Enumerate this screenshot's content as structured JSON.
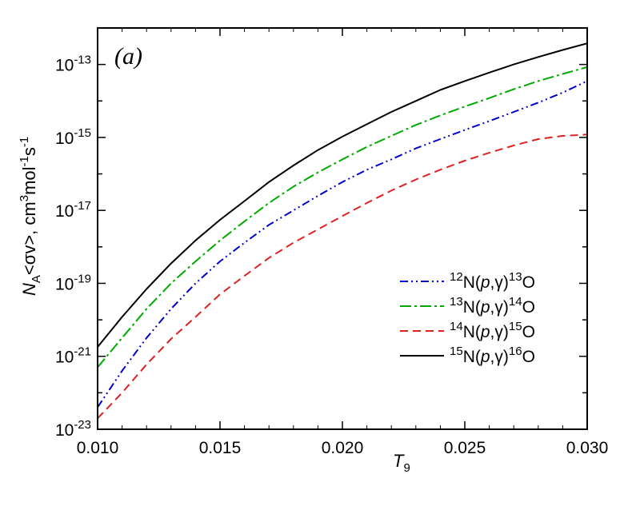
{
  "chart_data": {
    "type": "line",
    "panel_label": "(a)",
    "yscale": "log",
    "xlim": [
      0.01,
      0.03
    ],
    "ylim": [
      1e-23,
      1e-12
    ],
    "x_ticks": [
      "0.010",
      "0.015",
      "0.020",
      "0.025",
      "0.030"
    ],
    "y_ticks": [
      {
        "mantissa": "10",
        "exp": "-13",
        "value": 1e-13
      },
      {
        "mantissa": "10",
        "exp": "-15",
        "value": 1e-15
      },
      {
        "mantissa": "10",
        "exp": "-17",
        "value": 1e-17
      },
      {
        "mantissa": "10",
        "exp": "-19",
        "value": 1e-19
      },
      {
        "mantissa": "10",
        "exp": "-21",
        "value": 1e-21
      },
      {
        "mantissa": "10",
        "exp": "-23",
        "value": 1e-23
      }
    ],
    "xlabel": {
      "main": "T",
      "sub": "9"
    },
    "ylabel": {
      "n": "N",
      "a": "A",
      "rest": "<σv>, cm",
      "e1": "3",
      "mol": "mol",
      "e2": "-1",
      "s": "s",
      "e3": "-1"
    },
    "legend_position": "lower-right",
    "x": [
      0.01,
      0.011,
      0.012,
      0.013,
      0.014,
      0.015,
      0.016,
      0.017,
      0.018,
      0.019,
      0.02,
      0.021,
      0.022,
      0.023,
      0.024,
      0.025,
      0.026,
      0.027,
      0.028,
      0.029,
      0.03
    ],
    "series": [
      {
        "name": "12N(p,γ)13O",
        "label": {
          "pre": "12",
          "el1": "N(",
          "p": "p",
          "comma": ",",
          "g": "γ",
          "close": ")",
          "post": "13",
          "el2": "O"
        },
        "color": "#0000cc",
        "dash": "10,4,2,4,2,4",
        "values": [
          4e-23,
          4e-22,
          3.2e-21,
          2e-20,
          1e-19,
          4e-19,
          1.3e-18,
          4e-18,
          1e-17,
          2.5e-17,
          6e-17,
          1.3e-16,
          2.5e-16,
          5e-16,
          9e-16,
          1.6e-15,
          2.8e-15,
          5e-15,
          9e-15,
          1.7e-14,
          3.5e-14
        ]
      },
      {
        "name": "13N(p,γ)14O",
        "label": {
          "pre": "13",
          "el1": "N(",
          "p": "p",
          "comma": ",",
          "g": "γ",
          "close": ")",
          "post": "14",
          "el2": "O"
        },
        "color": "#00aa00",
        "dash": "14,4,3,4",
        "values": [
          5e-22,
          3.2e-21,
          2e-20,
          1e-19,
          4e-19,
          1.5e-18,
          5e-18,
          1.6e-17,
          4.5e-17,
          1.1e-16,
          2.5e-16,
          5.5e-16,
          1.1e-15,
          2.2e-15,
          4e-15,
          7e-15,
          1.2e-14,
          2.1e-14,
          3.5e-14,
          5.5e-14,
          8.5e-14
        ]
      },
      {
        "name": "14N(p,γ)15O",
        "label": {
          "pre": "14",
          "el1": "N(",
          "p": "p",
          "comma": ",",
          "g": "γ",
          "close": ")",
          "post": "15",
          "el2": "O"
        },
        "color": "#dd2222",
        "dash": "10,6",
        "values": [
          2e-23,
          1e-22,
          6e-22,
          3e-21,
          1.2e-20,
          5e-20,
          1.6e-19,
          5e-19,
          1.3e-18,
          3e-18,
          7e-18,
          1.6e-17,
          3.5e-17,
          7e-17,
          1.3e-16,
          2.3e-16,
          3.8e-16,
          6e-16,
          9e-16,
          1.1e-15,
          1.2e-15
        ]
      },
      {
        "name": "15N(p,γ)16O",
        "label": {
          "pre": "15",
          "el1": "N(",
          "p": "p",
          "comma": ",",
          "g": "γ",
          "close": ")",
          "post": "16",
          "el2": "O"
        },
        "color": "#000000",
        "dash": "",
        "values": [
          1.8e-21,
          1.2e-20,
          7e-20,
          3.5e-19,
          1.5e-18,
          5.5e-18,
          1.8e-17,
          6e-17,
          1.7e-16,
          4.5e-16,
          1.05e-15,
          2.3e-15,
          5e-15,
          1e-14,
          2e-14,
          3.5e-14,
          6e-14,
          1e-13,
          1.6e-13,
          2.5e-13,
          3.8e-13
        ]
      }
    ]
  }
}
